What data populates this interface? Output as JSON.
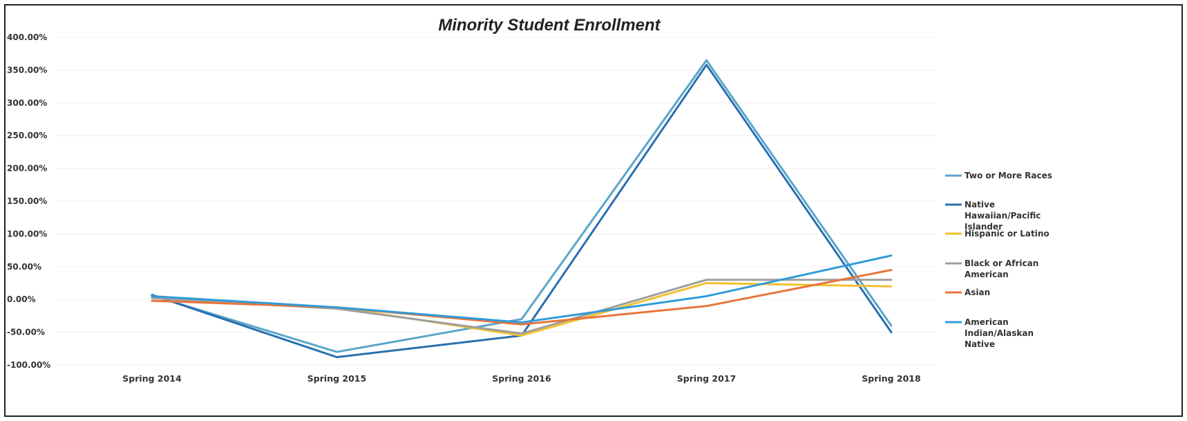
{
  "chart_data": {
    "type": "line",
    "title": "Minority Student Enrollment",
    "xlabel": "",
    "ylabel": "",
    "categories": [
      "Spring 2014",
      "Spring 2015",
      "Spring 2016",
      "Spring 2017",
      "Spring 2018"
    ],
    "ylim": [
      -100,
      400
    ],
    "yticks": [
      400,
      350,
      300,
      250,
      200,
      150,
      100,
      50,
      0,
      -50,
      -100
    ],
    "ytick_labels": [
      "400.00%",
      "350.00%",
      "300.00%",
      "250.00%",
      "200.00%",
      "150.00%",
      "100.00%",
      "50.00%",
      "0.00%",
      "-50.00%",
      "-100.00%"
    ],
    "legend_position": "right",
    "grid": true,
    "series": [
      {
        "name": "Two or More Races",
        "color": "#5aa5c8",
        "values": [
          6,
          -80,
          -30,
          365,
          -40
        ]
      },
      {
        "name": "Native Hawaiian/Pacific Islander",
        "color": "#2a6fb0",
        "values": [
          7,
          -88,
          -55,
          358,
          -50
        ]
      },
      {
        "name": "Hispanic or Latino",
        "color": "#f2c12e",
        "values": [
          3,
          -12,
          -55,
          25,
          20
        ]
      },
      {
        "name": "Black or African American",
        "color": "#9e9e9e",
        "values": [
          2,
          -14,
          -52,
          30,
          30
        ]
      },
      {
        "name": "Asian",
        "color": "#e8743b",
        "values": [
          -2,
          -12,
          -38,
          -10,
          45
        ]
      },
      {
        "name": "American Indian/Alaskan Native",
        "color": "#2f9bd8",
        "values": [
          5,
          -12,
          -35,
          5,
          67
        ]
      }
    ]
  }
}
